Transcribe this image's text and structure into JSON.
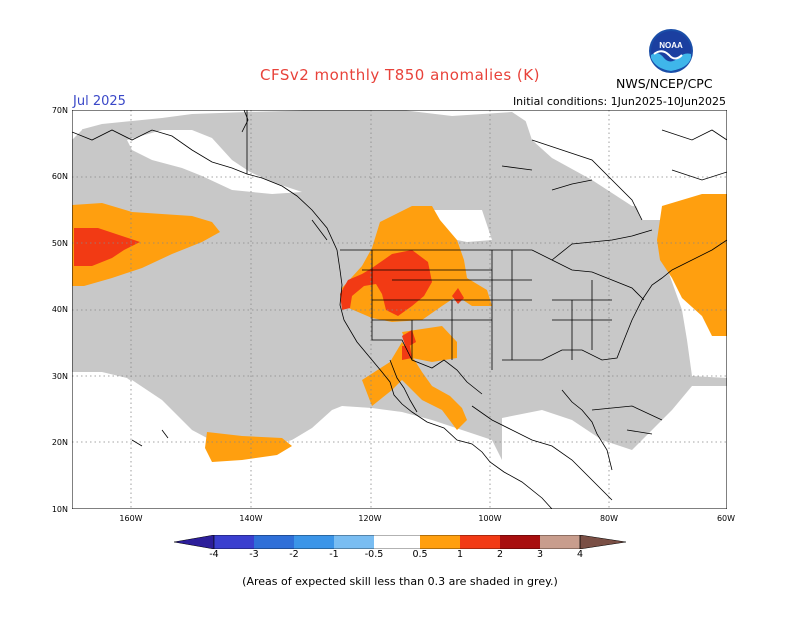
{
  "header": {
    "title": "CFSv2 monthly T850 anomalies (K)",
    "month": "Jul 2025",
    "agency": "NWS/NCEP/CPC",
    "initial_conditions": "Initial conditions: 1Jun2025-10Jun2025",
    "logo_text": "NOAA"
  },
  "axes": {
    "lat_labels": [
      "70N",
      "60N",
      "50N",
      "40N",
      "30N",
      "20N",
      "10N"
    ],
    "lon_labels": [
      "160W",
      "140W",
      "120W",
      "100W",
      "80W",
      "60W"
    ]
  },
  "colorbar": {
    "labels": [
      "-4",
      "-3",
      "-2",
      "-1",
      "-0.5",
      "0.5",
      "1",
      "2",
      "3",
      "4"
    ],
    "colors": [
      "#2c1e9a",
      "#3a3fcf",
      "#2f6fd8",
      "#3b95e8",
      "#79bdf2",
      "#ffffff",
      "#ff9f0f",
      "#f23a14",
      "#a80f0f",
      "#c89d8d",
      "#7a4f45"
    ]
  },
  "legend": {
    "skill_grey": "#c8c8c8",
    "footnote": "(Areas of expected skill less than 0.3 are shaded in grey.)"
  }
}
